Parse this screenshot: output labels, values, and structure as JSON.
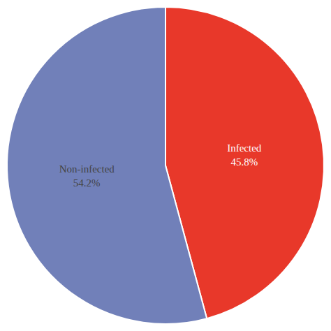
{
  "chart_data": {
    "type": "pie",
    "categories": [
      "Infected",
      "Non-infected"
    ],
    "values": [
      45.8,
      54.2
    ],
    "value_labels": [
      "45.8%",
      "54.2%"
    ],
    "colors": [
      "#E8382A",
      "#7180B9"
    ],
    "data_labels": true
  }
}
